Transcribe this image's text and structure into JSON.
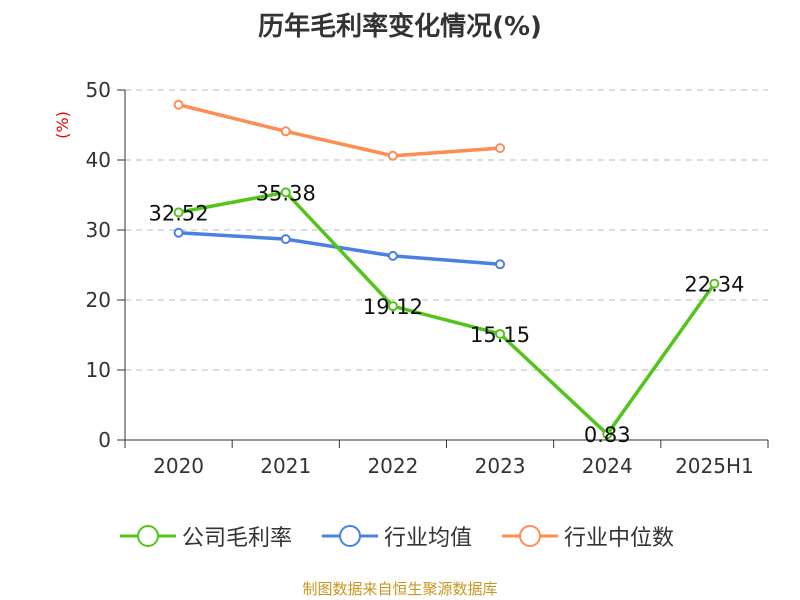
{
  "chart_data": {
    "type": "line",
    "title": "历年毛利率变化情况(%)",
    "ylabel": "(%)",
    "categories": [
      "2020",
      "2021",
      "2022",
      "2023",
      "2024",
      "2025H1"
    ],
    "ylim": [
      0,
      50
    ],
    "yticks": [
      "0",
      "10",
      "20",
      "30",
      "40",
      "50"
    ],
    "grid": true,
    "legend_position": "bottom",
    "series": [
      {
        "name": "公司毛利率",
        "color": "#52c41a",
        "values": [
          32.52,
          35.38,
          19.12,
          15.15,
          0.83,
          22.34
        ],
        "labels": [
          "32.52",
          "35.38",
          "19.12",
          "15.15",
          "0.83",
          "22.34"
        ]
      },
      {
        "name": "行业均值",
        "color": "#4a80e0",
        "values": [
          29.6,
          28.7,
          26.3,
          25.1,
          null,
          null
        ]
      },
      {
        "name": "行业中位数",
        "color": "#ff8c55",
        "values": [
          47.9,
          44.1,
          40.6,
          41.7,
          null,
          null
        ]
      }
    ]
  },
  "source": "制图数据来自恒生聚源数据库"
}
